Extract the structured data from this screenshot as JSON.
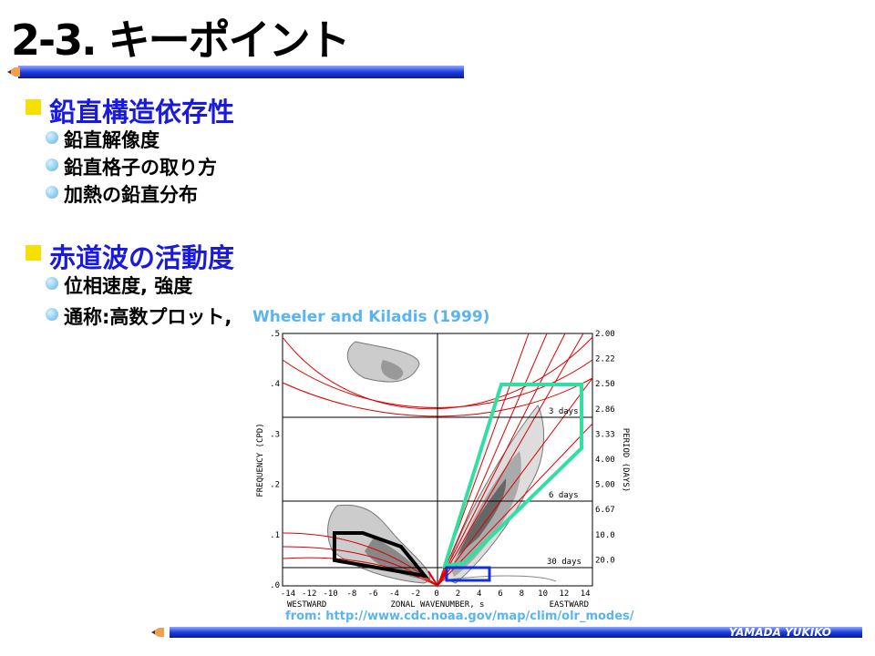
{
  "header": {
    "title": "2-3. キーポイント"
  },
  "sections": [
    {
      "heading": "鉛直構造依存性",
      "items": [
        "鉛直解像度",
        "鉛直格子の取り方",
        "加熱の鉛直分布"
      ]
    },
    {
      "heading": "赤道波の活動度",
      "items": [
        "位相速度, 強度",
        "通称:高数プロット,"
      ]
    }
  ],
  "citation": "Wheeler and Kiladis (1999)",
  "figure": {
    "y_label": "FREQUENCY (CPD)",
    "y2_label": "PERIOD (DAYS)",
    "x_label": "ZONAL WAVENUMBER, s",
    "x_left": "WESTWARD",
    "x_right": "EASTWARD",
    "y_ticks": [
      ".5",
      ".4",
      ".3",
      ".2",
      ".1",
      ".0"
    ],
    "y2_ticks": [
      "2.00",
      "2.22",
      "2.50",
      "2.86",
      "3.33",
      "4.00",
      "5.00",
      "6.67",
      "10.0",
      "20.0"
    ],
    "x_ticks": [
      "-14",
      "-12",
      "-10",
      "-8",
      "-6",
      "-4",
      "-2",
      "0",
      "2",
      "4",
      "6",
      "8",
      "10",
      "12",
      "14"
    ],
    "annotations": [
      "3 days",
      "6 days",
      "30 days"
    ]
  },
  "source": "from: http://www.cdc.noaa.gov/map/clim/olr_modes/",
  "footer": "YAMADA YUKIKO"
}
